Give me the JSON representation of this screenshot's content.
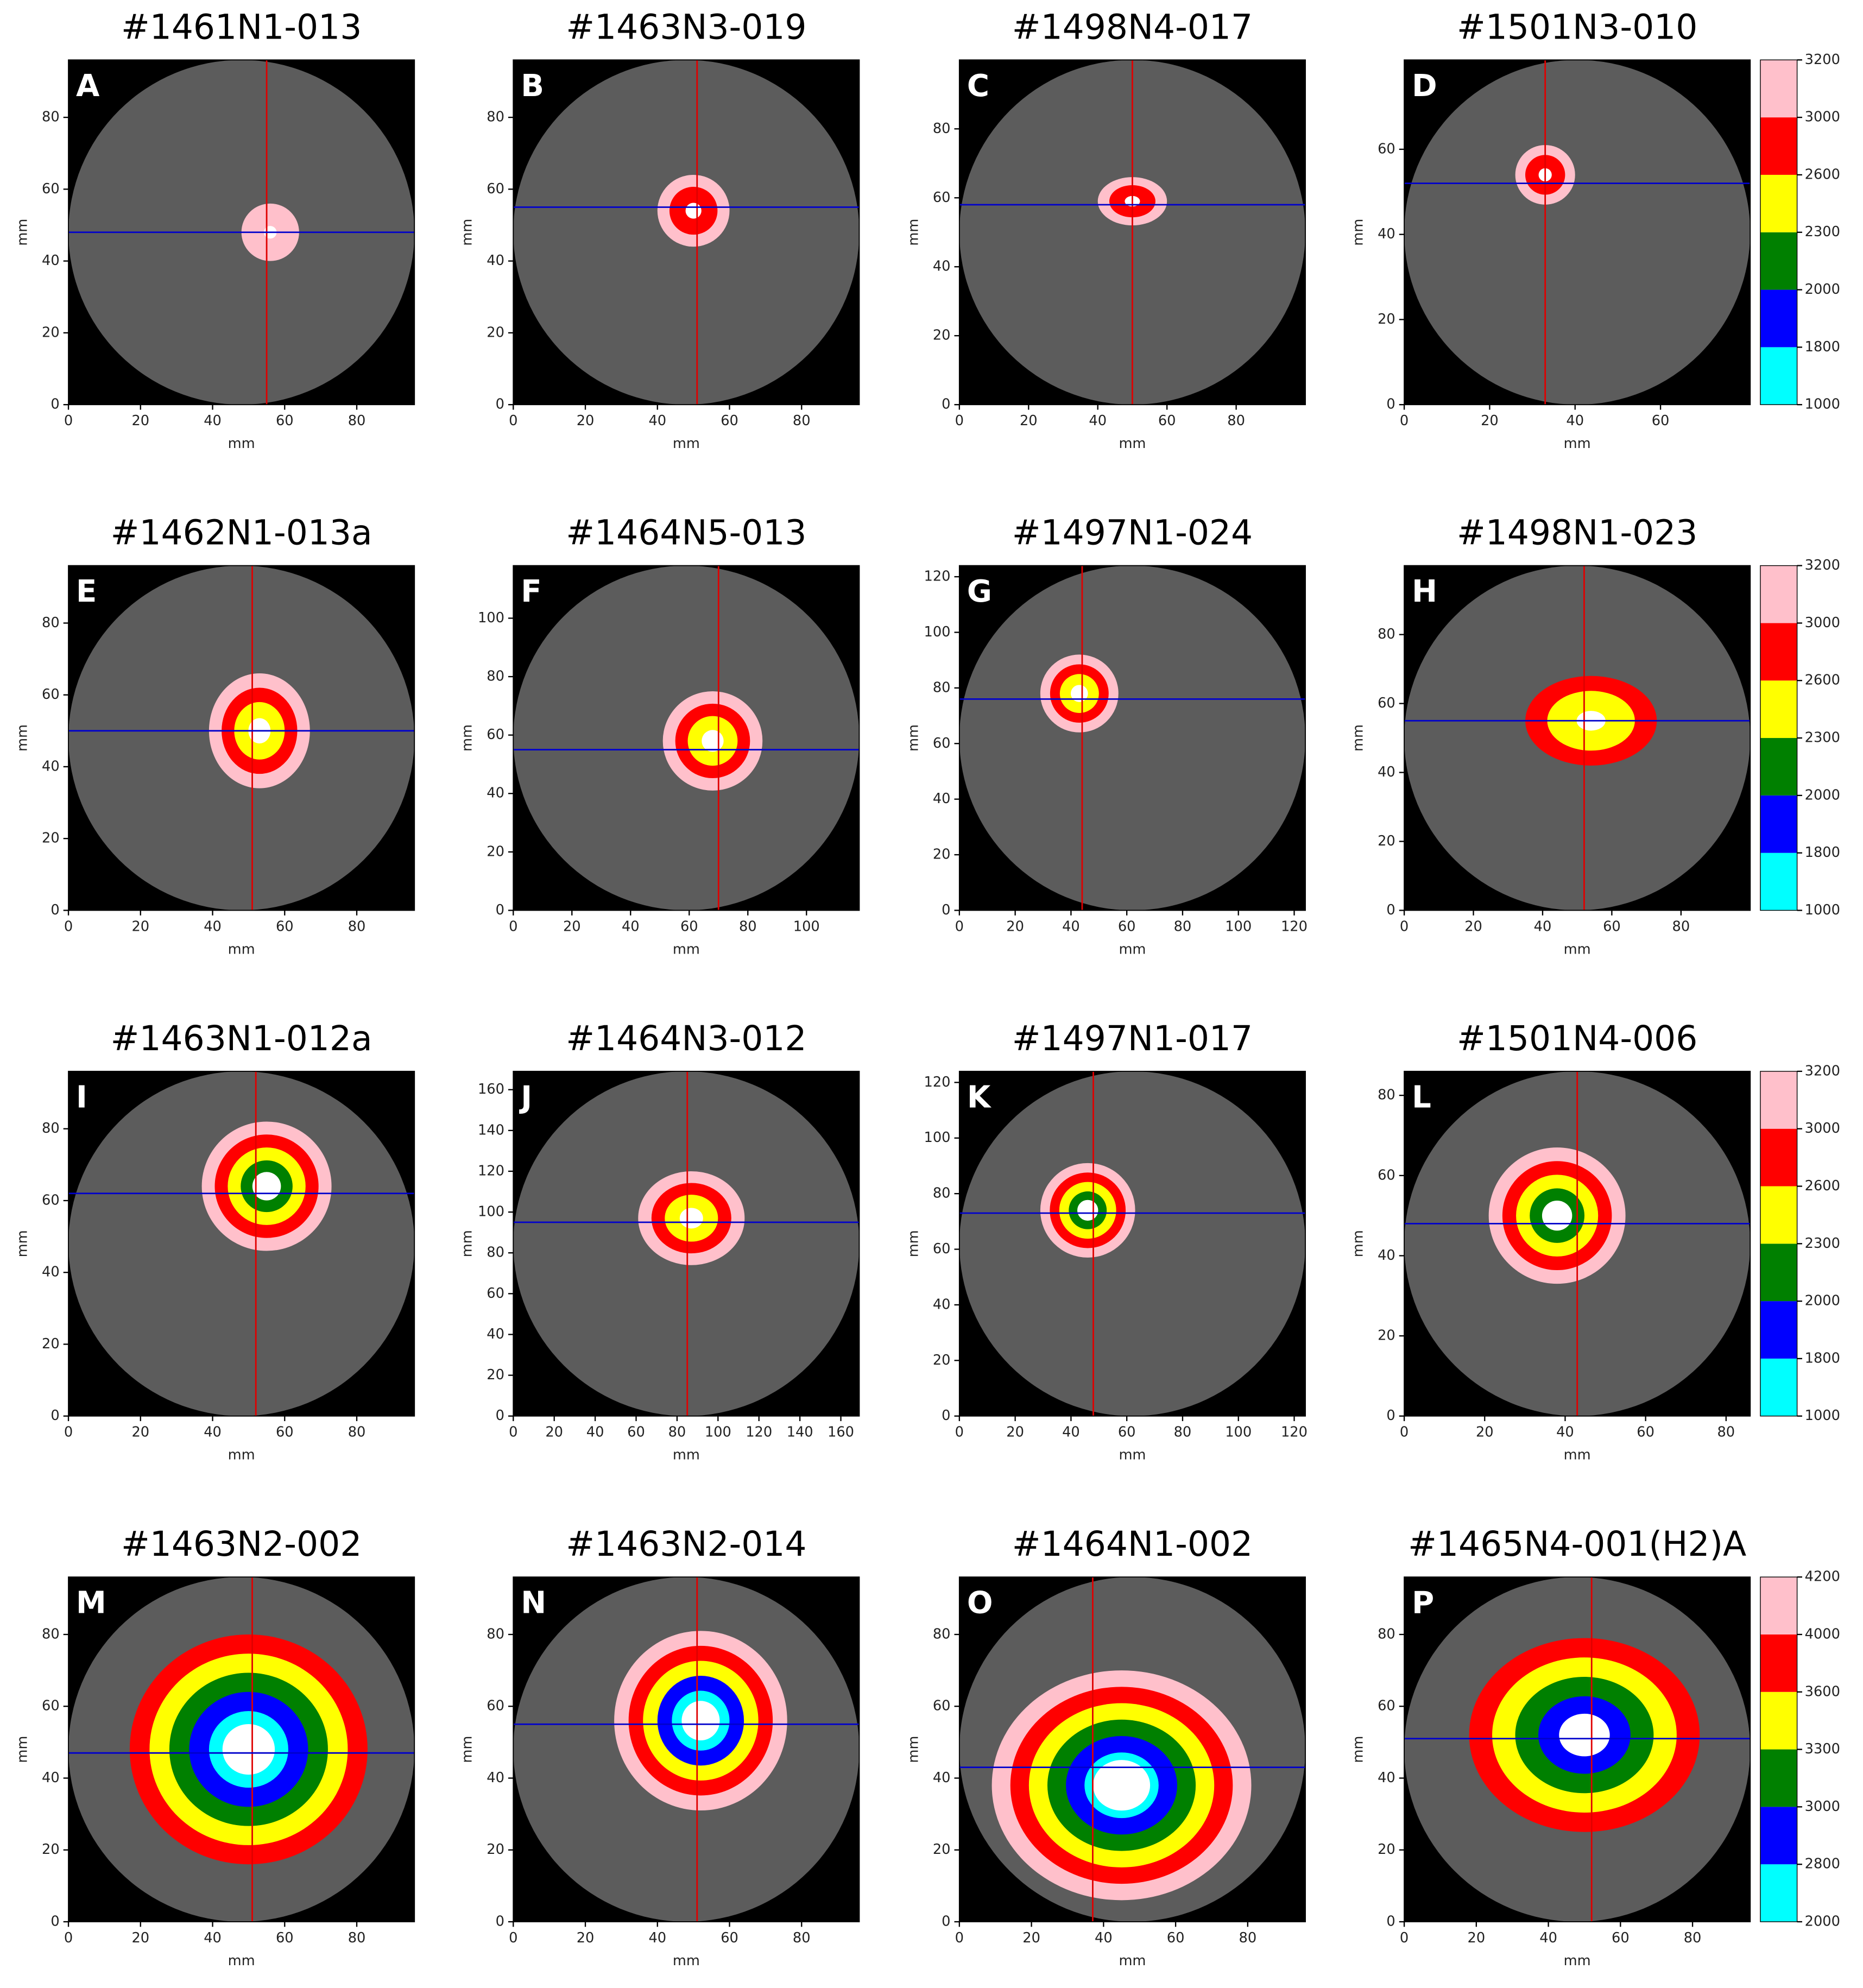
{
  "chart_data": [
    {
      "type": "image",
      "title": "#1461N1-013",
      "panel_label": "A",
      "xlabel": "mm",
      "ylabel": "mm",
      "xlim": [
        0,
        96
      ],
      "ylim": [
        0,
        96
      ],
      "xticks": [
        0,
        20,
        40,
        60,
        80
      ],
      "yticks": [
        0,
        20,
        40,
        60,
        80
      ],
      "crosshair": {
        "x": 55,
        "y": 48
      },
      "crosshair_colors": [
        "#e00000",
        "#0000cc"
      ],
      "lesion": {
        "x": 56,
        "y": 48,
        "rx": 8,
        "ry": 8
      },
      "lesion_colors": [
        "#ffc0cb",
        "#ffffff"
      ]
    },
    {
      "type": "image",
      "title": "#1463N3-019",
      "panel_label": "B",
      "xlabel": "mm",
      "ylabel": "mm",
      "xlim": [
        0,
        96
      ],
      "ylim": [
        0,
        96
      ],
      "xticks": [
        0,
        20,
        40,
        60,
        80
      ],
      "yticks": [
        0,
        20,
        40,
        60,
        80
      ],
      "crosshair": {
        "x": 51,
        "y": 55
      },
      "crosshair_colors": [
        "#e00000",
        "#0000cc"
      ],
      "lesion": {
        "x": 50,
        "y": 54,
        "rx": 10,
        "ry": 10
      },
      "lesion_colors": [
        "#ffc0cb",
        "#ff0000",
        "#ffffff"
      ]
    },
    {
      "type": "image",
      "title": "#1498N4-017",
      "panel_label": "C",
      "xlabel": "mm",
      "ylabel": "mm",
      "xlim": [
        0,
        100
      ],
      "ylim": [
        0,
        100
      ],
      "xticks": [
        0,
        20,
        40,
        60,
        80
      ],
      "yticks": [
        0,
        20,
        40,
        60,
        80
      ],
      "crosshair": {
        "x": 50,
        "y": 58
      },
      "crosshair_colors": [
        "#e00000",
        "#0000cc"
      ],
      "lesion": {
        "x": 50,
        "y": 59,
        "rx": 10,
        "ry": 7
      },
      "lesion_colors": [
        "#ffc0cb",
        "#ff0000",
        "#ffffff"
      ]
    },
    {
      "type": "image",
      "title": "#1501N3-010",
      "panel_label": "D",
      "xlabel": "mm",
      "ylabel": "mm",
      "xlim": [
        0,
        81
      ],
      "ylim": [
        0,
        81
      ],
      "xticks": [
        0,
        20,
        40,
        60
      ],
      "yticks": [
        0,
        20,
        40,
        60
      ],
      "crosshair": {
        "x": 33,
        "y": 52
      },
      "crosshair_colors": [
        "#e00000",
        "#0000cc"
      ],
      "lesion": {
        "x": 33,
        "y": 54,
        "rx": 7,
        "ry": 7
      },
      "lesion_colors": [
        "#ffc0cb",
        "#ff0000",
        "#ffffff"
      ],
      "colorbar": {
        "ticks": [
          1000,
          1800,
          2000,
          2300,
          2600,
          3000,
          3200
        ],
        "colors": [
          "#00ffff",
          "#0000ff",
          "#008000",
          "#ffff00",
          "#ff0000",
          "#ffc0cb"
        ]
      }
    },
    {
      "type": "image",
      "title": "#1462N1-013a",
      "panel_label": "E",
      "xlabel": "mm",
      "ylabel": "mm",
      "xlim": [
        0,
        96
      ],
      "ylim": [
        0,
        96
      ],
      "xticks": [
        0,
        20,
        40,
        60,
        80
      ],
      "yticks": [
        0,
        20,
        40,
        60,
        80
      ],
      "crosshair": {
        "x": 51,
        "y": 50
      },
      "crosshair_colors": [
        "#e00000",
        "#0000cc"
      ],
      "lesion": {
        "x": 53,
        "y": 50,
        "rx": 14,
        "ry": 16
      },
      "lesion_colors": [
        "#ffc0cb",
        "#ff0000",
        "#ffff00",
        "#ffffff"
      ]
    },
    {
      "type": "image",
      "title": "#1464N5-013",
      "panel_label": "F",
      "xlabel": "mm",
      "ylabel": "mm",
      "xlim": [
        0,
        118
      ],
      "ylim": [
        0,
        118
      ],
      "xticks": [
        0,
        20,
        40,
        60,
        80,
        100
      ],
      "yticks": [
        0,
        20,
        40,
        60,
        80,
        100
      ],
      "crosshair": {
        "x": 70,
        "y": 55
      },
      "crosshair_colors": [
        "#e00000",
        "#0000cc"
      ],
      "lesion": {
        "x": 68,
        "y": 58,
        "rx": 17,
        "ry": 17
      },
      "lesion_colors": [
        "#ffc0cb",
        "#ff0000",
        "#ffff00",
        "#ffffff"
      ]
    },
    {
      "type": "image",
      "title": "#1497N1-024",
      "panel_label": "G",
      "xlabel": "mm",
      "ylabel": "mm",
      "xlim": [
        0,
        124
      ],
      "ylim": [
        0,
        124
      ],
      "xticks": [
        0,
        20,
        40,
        60,
        80,
        100,
        120
      ],
      "yticks": [
        0,
        20,
        40,
        60,
        80,
        100,
        120
      ],
      "crosshair": {
        "x": 44,
        "y": 76
      },
      "crosshair_colors": [
        "#e00000",
        "#0000cc"
      ],
      "lesion": {
        "x": 43,
        "y": 78,
        "rx": 14,
        "ry": 14
      },
      "lesion_colors": [
        "#ffc0cb",
        "#ff0000",
        "#ffff00",
        "#ffffff"
      ]
    },
    {
      "type": "image",
      "title": "#1498N1-023",
      "panel_label": "H",
      "xlabel": "mm",
      "ylabel": "mm",
      "xlim": [
        0,
        100
      ],
      "ylim": [
        0,
        100
      ],
      "xticks": [
        0,
        20,
        40,
        60,
        80
      ],
      "yticks": [
        0,
        20,
        40,
        60,
        80
      ],
      "crosshair": {
        "x": 52,
        "y": 55
      },
      "crosshair_colors": [
        "#e00000",
        "#0000cc"
      ],
      "lesion": {
        "x": 54,
        "y": 55,
        "rx": 19,
        "ry": 13
      },
      "lesion_colors": [
        "#ff0000",
        "#ffff00",
        "#ffffff"
      ],
      "colorbar": {
        "ticks": [
          1000,
          1800,
          2000,
          2300,
          2600,
          3000,
          3200
        ],
        "colors": [
          "#00ffff",
          "#0000ff",
          "#008000",
          "#ffff00",
          "#ff0000",
          "#ffc0cb"
        ]
      }
    },
    {
      "type": "image",
      "title": "#1463N1-012a",
      "panel_label": "I",
      "xlabel": "mm",
      "ylabel": "mm",
      "xlim": [
        0,
        96
      ],
      "ylim": [
        0,
        96
      ],
      "xticks": [
        0,
        20,
        40,
        60,
        80
      ],
      "yticks": [
        0,
        20,
        40,
        60,
        80
      ],
      "crosshair": {
        "x": 52,
        "y": 62
      },
      "crosshair_colors": [
        "#e00000",
        "#0000cc"
      ],
      "lesion": {
        "x": 55,
        "y": 64,
        "rx": 18,
        "ry": 18
      },
      "lesion_colors": [
        "#ffc0cb",
        "#ff0000",
        "#ffff00",
        "#008000",
        "#ffffff"
      ]
    },
    {
      "type": "image",
      "title": "#1464N3-012",
      "panel_label": "J",
      "xlabel": "mm",
      "ylabel": "mm",
      "xlim": [
        0,
        169
      ],
      "ylim": [
        0,
        169
      ],
      "xticks": [
        0,
        20,
        40,
        60,
        80,
        100,
        120,
        140,
        160
      ],
      "yticks": [
        0,
        20,
        40,
        60,
        80,
        100,
        120,
        140,
        160
      ],
      "crosshair": {
        "x": 85,
        "y": 95
      },
      "crosshair_colors": [
        "#e00000",
        "#0000cc"
      ],
      "lesion": {
        "x": 87,
        "y": 97,
        "rx": 26,
        "ry": 23
      },
      "lesion_colors": [
        "#ffc0cb",
        "#ff0000",
        "#ffff00",
        "#ffffff"
      ]
    },
    {
      "type": "image",
      "title": "#1497N1-017",
      "panel_label": "K",
      "xlabel": "mm",
      "ylabel": "mm",
      "xlim": [
        0,
        124
      ],
      "ylim": [
        0,
        124
      ],
      "xticks": [
        0,
        20,
        40,
        60,
        80,
        100,
        120
      ],
      "yticks": [
        0,
        20,
        40,
        60,
        80,
        100,
        120
      ],
      "crosshair": {
        "x": 48,
        "y": 73
      },
      "crosshair_colors": [
        "#e00000",
        "#0000cc"
      ],
      "lesion": {
        "x": 46,
        "y": 74,
        "rx": 17,
        "ry": 17
      },
      "lesion_colors": [
        "#ffc0cb",
        "#ff0000",
        "#ffff00",
        "#008000",
        "#ffffff"
      ]
    },
    {
      "type": "image",
      "title": "#1501N4-006",
      "panel_label": "L",
      "xlabel": "mm",
      "ylabel": "mm",
      "xlim": [
        0,
        86
      ],
      "ylim": [
        0,
        86
      ],
      "xticks": [
        0,
        20,
        40,
        60,
        80
      ],
      "yticks": [
        0,
        20,
        40,
        60,
        80
      ],
      "crosshair": {
        "x": 43,
        "y": 48
      },
      "crosshair_colors": [
        "#e00000",
        "#0000cc"
      ],
      "lesion": {
        "x": 38,
        "y": 50,
        "rx": 17,
        "ry": 17
      },
      "lesion_colors": [
        "#ffc0cb",
        "#ff0000",
        "#ffff00",
        "#008000",
        "#ffffff"
      ],
      "colorbar": {
        "ticks": [
          1000,
          1800,
          2000,
          2300,
          2600,
          3000,
          3200
        ],
        "colors": [
          "#00ffff",
          "#0000ff",
          "#008000",
          "#ffff00",
          "#ff0000",
          "#ffc0cb"
        ]
      }
    },
    {
      "type": "image",
      "title": "#1463N2-002",
      "panel_label": "M",
      "xlabel": "mm",
      "ylabel": "mm",
      "xlim": [
        0,
        96
      ],
      "ylim": [
        0,
        96
      ],
      "xticks": [
        0,
        20,
        40,
        60,
        80
      ],
      "yticks": [
        0,
        20,
        40,
        60,
        80
      ],
      "crosshair": {
        "x": 51,
        "y": 47
      },
      "crosshair_colors": [
        "#e00000",
        "#0000cc"
      ],
      "lesion": {
        "x": 50,
        "y": 48,
        "rx": 33,
        "ry": 32
      },
      "lesion_colors": [
        "#ff0000",
        "#ffff00",
        "#008000",
        "#0000ff",
        "#00ffff",
        "#ffffff"
      ]
    },
    {
      "type": "image",
      "title": "#1463N2-014",
      "panel_label": "N",
      "xlabel": "mm",
      "ylabel": "mm",
      "xlim": [
        0,
        96
      ],
      "ylim": [
        0,
        96
      ],
      "xticks": [
        0,
        20,
        40,
        60,
        80
      ],
      "yticks": [
        0,
        20,
        40,
        60,
        80
      ],
      "crosshair": {
        "x": 51,
        "y": 55
      },
      "crosshair_colors": [
        "#e00000",
        "#0000cc"
      ],
      "lesion": {
        "x": 52,
        "y": 56,
        "rx": 24,
        "ry": 25
      },
      "lesion_colors": [
        "#ffc0cb",
        "#ff0000",
        "#ffff00",
        "#0000ff",
        "#00ffff",
        "#ffffff"
      ]
    },
    {
      "type": "image",
      "title": "#1464N1-002",
      "panel_label": "O",
      "xlabel": "mm",
      "ylabel": "mm",
      "xlim": [
        0,
        96
      ],
      "ylim": [
        0,
        96
      ],
      "xticks": [
        0,
        20,
        40,
        60,
        80
      ],
      "yticks": [
        0,
        20,
        40,
        60,
        80
      ],
      "crosshair": {
        "x": 37,
        "y": 43
      },
      "crosshair_colors": [
        "#e00000",
        "#0000cc"
      ],
      "lesion": {
        "x": 45,
        "y": 38,
        "rx": 36,
        "ry": 32
      },
      "lesion_colors": [
        "#ffc0cb",
        "#ff0000",
        "#ffff00",
        "#008000",
        "#0000ff",
        "#00ffff",
        "#ffffff"
      ]
    },
    {
      "type": "image",
      "title": "#1465N4-001(H2)A",
      "panel_label": "P",
      "xlabel": "mm",
      "ylabel": "mm",
      "xlim": [
        0,
        96
      ],
      "ylim": [
        0,
        96
      ],
      "xticks": [
        0,
        20,
        40,
        60,
        80
      ],
      "yticks": [
        0,
        20,
        40,
        60,
        80
      ],
      "crosshair": {
        "x": 52,
        "y": 51
      },
      "crosshair_colors": [
        "#e00000",
        "#0000cc"
      ],
      "lesion": {
        "x": 50,
        "y": 52,
        "rx": 32,
        "ry": 27
      },
      "lesion_colors": [
        "#ff0000",
        "#ffff00",
        "#008000",
        "#0000ff",
        "#ffffff"
      ],
      "colorbar": {
        "ticks": [
          2000,
          2800,
          3000,
          3300,
          3600,
          4000,
          4200
        ],
        "colors": [
          "#00ffff",
          "#0000ff",
          "#008000",
          "#ffff00",
          "#ff0000",
          "#ffc0cb"
        ]
      }
    }
  ]
}
